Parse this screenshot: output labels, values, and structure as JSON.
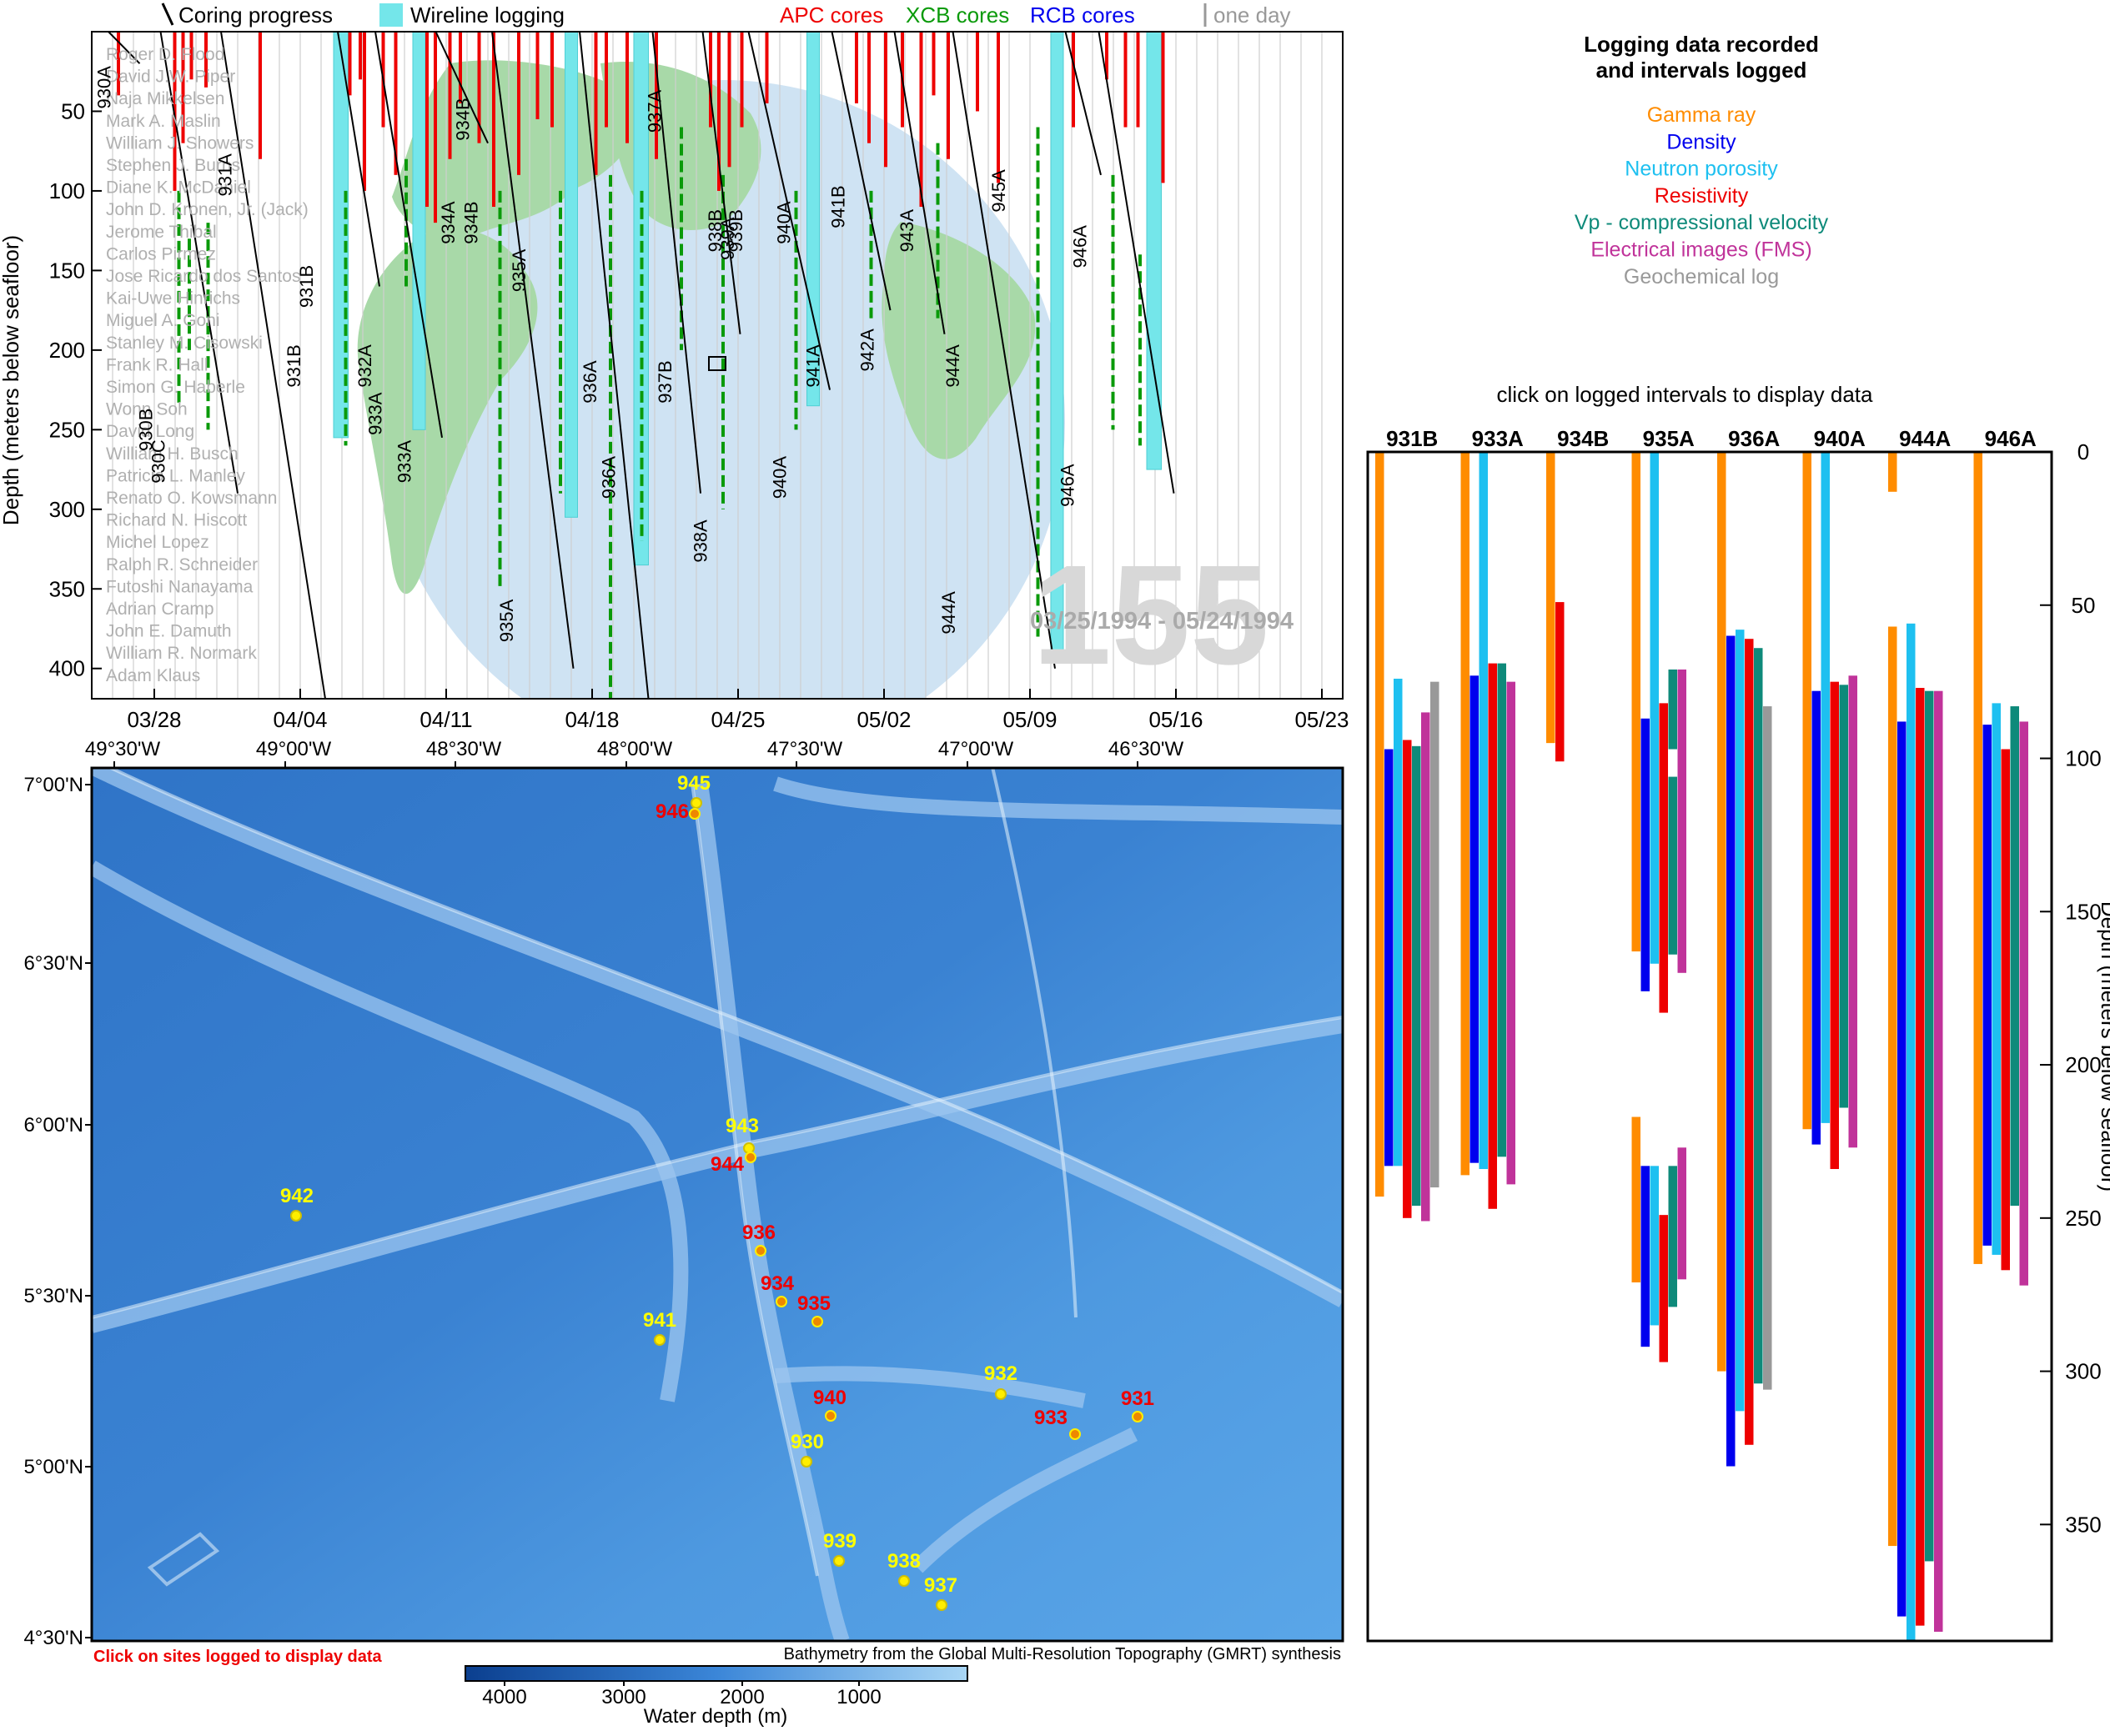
{
  "top_legend": {
    "coring_progress": "Coring progress",
    "wireline_logging": "Wireline logging",
    "apc": "APC cores",
    "xcb": "XCB cores",
    "rcb": "RCB cores",
    "one_day": "one day"
  },
  "top_panel": {
    "y_axis_label": "Depth (meters below seafloor)",
    "y_ticks": [
      "50",
      "100",
      "150",
      "200",
      "250",
      "300",
      "350",
      "400"
    ],
    "x_ticks": [
      "03/28",
      "04/04",
      "04/11",
      "04/18",
      "04/25",
      "05/02",
      "05/09",
      "05/16",
      "05/23"
    ],
    "leg_number": "155",
    "date_range": "03/25/1994 - 05/24/1994",
    "participants": [
      "Roger D. Flood",
      "David J.W. Piper",
      "Naja Mikkelsen",
      "Mark A. Maslin",
      "William J. Showers",
      "Stephen J. Burns",
      "Diane K. McDaniel",
      "John D. Kronen, Jr. (Jack)",
      "Jerome Thibal",
      "Carlos Pirmez",
      "Jose Ricardo dos Santos",
      "Kai-Uwe Hinrichs",
      "Miguel A. Goni",
      "Stanley M. Cisowski",
      "Frank R. Hall",
      "Simon G. Haberle",
      "Wonn Soh",
      "David Long",
      "William H. Busch",
      "Patricia L. Manley",
      "Renato O. Kowsmann",
      "Richard N. Hiscott",
      "Michel Lopez",
      "Ralph R. Schneider",
      "Futoshi Nanayama",
      "Adrian Cramp",
      "John E. Damuth",
      "William R. Normark",
      "Adam Klaus"
    ],
    "hole_labels": [
      "930A",
      "930B",
      "930C",
      "931A",
      "931B",
      "931B",
      "932A",
      "933A",
      "933A",
      "934A",
      "934B",
      "934B",
      "935A",
      "935A",
      "936A",
      "936A",
      "937A",
      "937B",
      "938A",
      "938B",
      "939A",
      "939B",
      "940A",
      "940A",
      "941B",
      "941A",
      "942A",
      "943A",
      "944A",
      "944A",
      "945A",
      "946A",
      "946A"
    ]
  },
  "legend_right": {
    "title": "Logging data recorded\nand intervals logged",
    "items": [
      {
        "label": "Gamma ray",
        "color": "#ff8c00"
      },
      {
        "label": "Density",
        "color": "#0000ee"
      },
      {
        "label": "Neutron porosity",
        "color": "#1ec0f0"
      },
      {
        "label": "Resistivity",
        "color": "#ee0000"
      },
      {
        "label": "Vp - compressional velocity",
        "color": "#0e8a7a"
      },
      {
        "label": "Electrical images (FMS)",
        "color": "#c0339a"
      },
      {
        "label": "Geochemical log",
        "color": "#999999"
      }
    ],
    "click_hint": "click on logged intervals to display data"
  },
  "map": {
    "lon_ticks": [
      "49°30'W",
      "49°00'W",
      "48°30'W",
      "48°00'W",
      "47°30'W",
      "47°00'W",
      "46°30'W"
    ],
    "lat_ticks": [
      "7°00'N",
      "6°30'N",
      "6°00'N",
      "5°30'N",
      "5°00'N",
      "4°30'N"
    ],
    "click_note": "Click on sites logged to display data",
    "credit": "Bathymetry from the Global Multi-Resolution Topography (GMRT) synthesis",
    "colorbar_ticks": [
      "4000",
      "3000",
      "2000",
      "1000"
    ],
    "colorbar_label": "Water depth (m)",
    "sites": [
      {
        "id": "945",
        "logged": false
      },
      {
        "id": "946",
        "logged": true
      },
      {
        "id": "943",
        "logged": false
      },
      {
        "id": "944",
        "logged": true
      },
      {
        "id": "942",
        "logged": false
      },
      {
        "id": "936",
        "logged": true
      },
      {
        "id": "934",
        "logged": true
      },
      {
        "id": "935",
        "logged": true
      },
      {
        "id": "941",
        "logged": false
      },
      {
        "id": "932",
        "logged": false
      },
      {
        "id": "931",
        "logged": true
      },
      {
        "id": "940",
        "logged": true
      },
      {
        "id": "933",
        "logged": true
      },
      {
        "id": "930",
        "logged": false
      },
      {
        "id": "939",
        "logged": false
      },
      {
        "id": "938",
        "logged": false
      },
      {
        "id": "937",
        "logged": false
      }
    ]
  },
  "chart_data": {
    "type": "bar",
    "y_axis_label": "Depth (meters below seafloor)",
    "y_ticks": [
      "0",
      "50",
      "100",
      "150",
      "200",
      "250",
      "300",
      "350"
    ],
    "ylim": [
      0,
      388
    ],
    "categories": [
      "931B",
      "933A",
      "934B",
      "935A",
      "936A",
      "940A",
      "944A",
      "946A"
    ],
    "holes": [
      {
        "name": "931B",
        "bars": [
          {
            "log": "Gamma ray",
            "from": 0,
            "to": 243
          },
          {
            "log": "Density",
            "from": 97,
            "to": 233
          },
          {
            "log": "Neutron porosity",
            "from": 74,
            "to": 233
          },
          {
            "log": "Resistivity",
            "from": 94,
            "to": 250
          },
          {
            "log": "Vp - compressional velocity",
            "from": 96,
            "to": 246
          },
          {
            "log": "Electrical images (FMS)",
            "from": 85,
            "to": 251
          },
          {
            "log": "Geochemical log",
            "from": 75,
            "to": 240
          }
        ]
      },
      {
        "name": "933A",
        "bars": [
          {
            "log": "Gamma ray",
            "from": 0,
            "to": 236
          },
          {
            "log": "Density",
            "from": 73,
            "to": 232
          },
          {
            "log": "Neutron porosity",
            "from": 0,
            "to": 234
          },
          {
            "log": "Resistivity",
            "from": 69,
            "to": 247
          },
          {
            "log": "Vp - compressional velocity",
            "from": 69,
            "to": 230
          },
          {
            "log": "Electrical images (FMS)",
            "from": 75,
            "to": 239
          }
        ]
      },
      {
        "name": "934B",
        "bars": [
          {
            "log": "Gamma ray",
            "from": 0,
            "to": 95
          },
          {
            "log": "Resistivity",
            "from": 49,
            "to": 101
          }
        ]
      },
      {
        "name": "935A",
        "bars": [
          {
            "log": "Gamma ray",
            "from": 0,
            "to": 163
          },
          {
            "log": "Gamma ray",
            "from": 217,
            "to": 271
          },
          {
            "log": "Density",
            "from": 87,
            "to": 176
          },
          {
            "log": "Density",
            "from": 233,
            "to": 292
          },
          {
            "log": "Neutron porosity",
            "from": 0,
            "to": 167
          },
          {
            "log": "Neutron porosity",
            "from": 233,
            "to": 285
          },
          {
            "log": "Resistivity",
            "from": 82,
            "to": 183
          },
          {
            "log": "Resistivity",
            "from": 249,
            "to": 297
          },
          {
            "log": "Vp - compressional velocity",
            "from": 71,
            "to": 97
          },
          {
            "log": "Vp - compressional velocity",
            "from": 106,
            "to": 164
          },
          {
            "log": "Vp - compressional velocity",
            "from": 233,
            "to": 279
          },
          {
            "log": "Electrical images (FMS)",
            "from": 71,
            "to": 170
          },
          {
            "log": "Electrical images (FMS)",
            "from": 227,
            "to": 270
          }
        ]
      },
      {
        "name": "936A",
        "bars": [
          {
            "log": "Gamma ray",
            "from": 0,
            "to": 300
          },
          {
            "log": "Density",
            "from": 60,
            "to": 331
          },
          {
            "log": "Neutron porosity",
            "from": 58,
            "to": 313
          },
          {
            "log": "Resistivity",
            "from": 61,
            "to": 324
          },
          {
            "log": "Vp - compressional velocity",
            "from": 64,
            "to": 304
          },
          {
            "log": "Geochemical log",
            "from": 83,
            "to": 306
          }
        ]
      },
      {
        "name": "940A",
        "bars": [
          {
            "log": "Gamma ray",
            "from": 0,
            "to": 221
          },
          {
            "log": "Density",
            "from": 78,
            "to": 226
          },
          {
            "log": "Neutron porosity",
            "from": 0,
            "to": 219
          },
          {
            "log": "Resistivity",
            "from": 75,
            "to": 234
          },
          {
            "log": "Vp - compressional velocity",
            "from": 76,
            "to": 214
          },
          {
            "log": "Electrical images (FMS)",
            "from": 73,
            "to": 227
          }
        ]
      },
      {
        "name": "944A",
        "bars": [
          {
            "log": "Gamma ray",
            "from": 0,
            "to": 13
          },
          {
            "log": "Gamma ray",
            "from": 57,
            "to": 357
          },
          {
            "log": "Density",
            "from": 88,
            "to": 380
          },
          {
            "log": "Neutron porosity",
            "from": 56,
            "to": 388
          },
          {
            "log": "Resistivity",
            "from": 77,
            "to": 383
          },
          {
            "log": "Vp - compressional velocity",
            "from": 78,
            "to": 362
          },
          {
            "log": "Electrical images (FMS)",
            "from": 78,
            "to": 385
          }
        ]
      },
      {
        "name": "946A",
        "bars": [
          {
            "log": "Gamma ray",
            "from": 0,
            "to": 265
          },
          {
            "log": "Density",
            "from": 89,
            "to": 259
          },
          {
            "log": "Neutron porosity",
            "from": 82,
            "to": 262
          },
          {
            "log": "Resistivity",
            "from": 97,
            "to": 267
          },
          {
            "log": "Vp - compressional velocity",
            "from": 83,
            "to": 246
          },
          {
            "log": "Electrical images (FMS)",
            "from": 88,
            "to": 272
          }
        ]
      }
    ]
  }
}
